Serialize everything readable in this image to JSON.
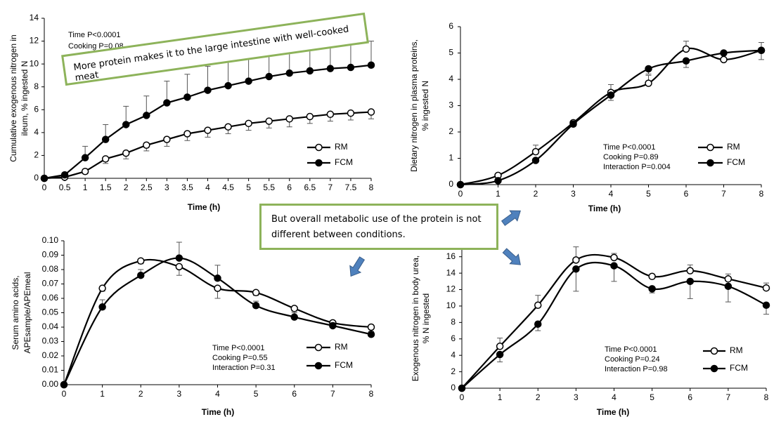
{
  "chart_data": [
    {
      "type": "line",
      "smooth": false,
      "ylabel": [
        "Cumulative exogenous nitrogen in",
        "ileum, % ingested N"
      ],
      "xlabel": "Time (h)",
      "annotations": [
        "Time  P<0.0001",
        "Cooking  P=0.08"
      ],
      "x": [
        0,
        0.5,
        1,
        1.5,
        2,
        2.5,
        3,
        3.5,
        4,
        4.5,
        5,
        5.5,
        6,
        6.5,
        7,
        7.5,
        8
      ],
      "xlim": [
        0,
        8
      ],
      "xticks": [
        0,
        0.5,
        1,
        1.5,
        2,
        2.5,
        3,
        3.5,
        4,
        4.5,
        5,
        5.5,
        6,
        6.5,
        7,
        7.5,
        8
      ],
      "ylim": [
        0,
        14
      ],
      "yticks": [
        0,
        2,
        4,
        6,
        8,
        10,
        12,
        14
      ],
      "series": [
        {
          "name": "RM",
          "color": "#000000",
          "marker": "open",
          "error_side": "down",
          "values": [
            0,
            0.1,
            0.6,
            1.7,
            2.2,
            2.9,
            3.4,
            3.9,
            4.2,
            4.5,
            4.8,
            5.0,
            5.2,
            5.4,
            5.6,
            5.7,
            5.8
          ],
          "errors": [
            0,
            0,
            0,
            0.4,
            0.5,
            0.5,
            0.6,
            0.6,
            0.6,
            0.6,
            0.6,
            0.6,
            0.7,
            0.6,
            0.6,
            0.6,
            0.6
          ]
        },
        {
          "name": "FCM",
          "color": "#000000",
          "marker": "filled",
          "error_side": "up",
          "values": [
            0,
            0.3,
            1.8,
            3.4,
            4.7,
            5.5,
            6.6,
            7.1,
            7.7,
            8.1,
            8.5,
            8.9,
            9.2,
            9.4,
            9.6,
            9.7,
            9.9
          ],
          "errors": [
            0,
            0,
            1.0,
            1.3,
            1.6,
            1.7,
            1.9,
            2.0,
            2.1,
            2.2,
            2.2,
            2.3,
            2.3,
            2.1,
            2.1,
            2.1,
            2.1
          ]
        }
      ]
    },
    {
      "type": "line",
      "smooth": true,
      "ylabel": [
        "Dietary nitrogen in plasma proteins,",
        "% ingested N"
      ],
      "xlabel": "Time (h)",
      "annotations": [
        "Time  P<0.0001",
        "Cooking  P=0.89",
        "Interaction  P=0.004"
      ],
      "x": [
        0,
        1,
        2,
        3,
        4,
        5,
        6,
        7,
        8
      ],
      "xlim": [
        0,
        8
      ],
      "xticks": [
        0,
        1,
        2,
        3,
        4,
        5,
        6,
        7,
        8
      ],
      "ylim": [
        0,
        6
      ],
      "yticks": [
        0,
        1,
        2,
        3,
        4,
        5,
        6
      ],
      "series": [
        {
          "name": "RM",
          "color": "#000000",
          "marker": "open",
          "error_side": "up",
          "values": [
            0,
            0.35,
            1.25,
            2.35,
            3.5,
            3.85,
            5.15,
            4.75,
            5.1
          ],
          "errors": [
            0,
            0,
            0.25,
            0,
            0.3,
            0.3,
            0.3,
            0,
            0.3
          ]
        },
        {
          "name": "FCM",
          "color": "#000000",
          "marker": "filled",
          "error_side": "down",
          "values": [
            0,
            0.15,
            0.92,
            2.3,
            3.4,
            4.4,
            4.7,
            5.0,
            5.1
          ],
          "errors": [
            0,
            0,
            0,
            0,
            0.2,
            0.2,
            0.25,
            0,
            0.35
          ]
        }
      ]
    },
    {
      "type": "line",
      "smooth": true,
      "ylabel": [
        "Serum amino acids,",
        "APEsample/APEmeal"
      ],
      "xlabel": "Time (h)",
      "annotations": [
        "Time  P<0.0001",
        "Cooking  P=0.55",
        "Interaction  P=0.31"
      ],
      "x": [
        0,
        1,
        2,
        3,
        4,
        5,
        6,
        7,
        8
      ],
      "xlim": [
        0,
        8
      ],
      "xticks": [
        0,
        1,
        2,
        3,
        4,
        5,
        6,
        7,
        8
      ],
      "ylim": [
        0,
        0.1
      ],
      "yticks": [
        {
          "value": 0,
          "label": "0.00"
        },
        0.01,
        0.02,
        0.03,
        0.04,
        0.05,
        0.06,
        0.07,
        0.08,
        0.09,
        {
          "value": 0.1,
          "label": "0.10"
        }
      ],
      "series": [
        {
          "name": "RM",
          "color": "#000000",
          "marker": "open",
          "error_side": "down",
          "values": [
            0,
            0.067,
            0.086,
            0.082,
            0.067,
            0.064,
            0.053,
            0.043,
            0.04
          ],
          "errors": [
            0,
            0.002,
            0.002,
            0.006,
            0.007,
            0.002,
            0.002,
            0.002,
            0.001
          ]
        },
        {
          "name": "FCM",
          "color": "#000000",
          "marker": "filled",
          "error_side": "up",
          "values": [
            0,
            0.054,
            0.076,
            0.088,
            0.074,
            0.055,
            0.047,
            0.041,
            0.035
          ],
          "errors": [
            0,
            0.005,
            0.004,
            0.011,
            0.009,
            0.003,
            0.003,
            0.002,
            0.002
          ]
        }
      ]
    },
    {
      "type": "line",
      "smooth": true,
      "ylabel": [
        "Exogenous nitrogen in body urea,",
        "% N ingested"
      ],
      "xlabel": "Time (h)",
      "annotations": [
        "Time  P<0.0001",
        "Cooking  P=0.24",
        "Interaction  P=0.98"
      ],
      "x": [
        0,
        1,
        2,
        3,
        4,
        5,
        6,
        7,
        8
      ],
      "xlim": [
        0,
        8
      ],
      "xticks": [
        0,
        1,
        2,
        3,
        4,
        5,
        6,
        7,
        8
      ],
      "ylim": [
        0,
        17
      ],
      "yticks": [
        0,
        2,
        4,
        6,
        8,
        10,
        12,
        14,
        16
      ],
      "series": [
        {
          "name": "RM",
          "color": "#000000",
          "marker": "open",
          "error_side": "up",
          "values": [
            0,
            5.1,
            10.1,
            15.6,
            15.9,
            13.6,
            14.3,
            13.3,
            12.2
          ],
          "errors": [
            0,
            1.0,
            1.2,
            1.6,
            0.5,
            0.3,
            0.7,
            0.6,
            0.6
          ]
        },
        {
          "name": "FCM",
          "color": "#000000",
          "marker": "filled",
          "error_side": "down",
          "values": [
            0,
            4.1,
            7.8,
            14.5,
            14.9,
            12.1,
            13.0,
            12.4,
            10.1
          ],
          "errors": [
            0,
            0.9,
            0.8,
            2.7,
            1.9,
            0.5,
            2.1,
            1.9,
            1.1
          ]
        }
      ]
    }
  ],
  "callouts": [
    "More protein makes it to the large intestine with well-cooked meat",
    "But overall metabolic use of the protein is not different between conditions."
  ]
}
